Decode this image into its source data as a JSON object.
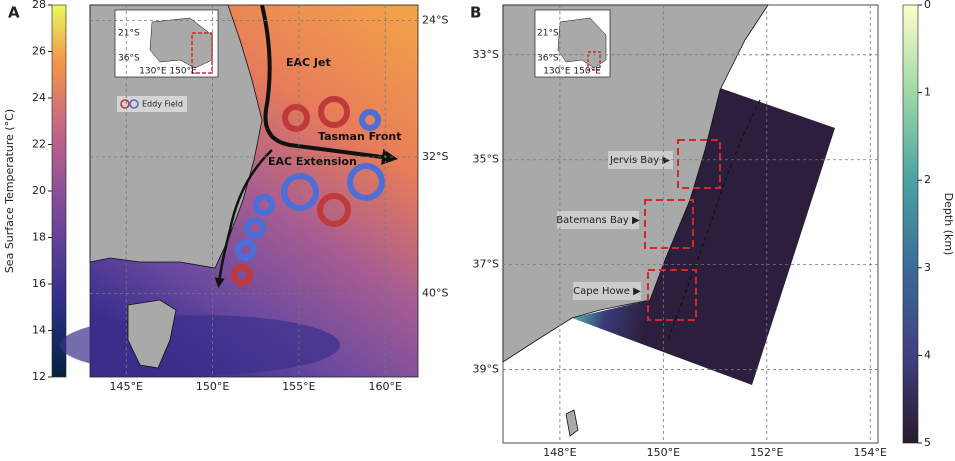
{
  "panel_a": {
    "label": "A",
    "colorbar": {
      "title": "Sea Surface Temperature (°C)",
      "lim": [
        12,
        28
      ],
      "ticks": [
        12,
        14,
        16,
        18,
        20,
        22,
        24,
        26,
        28
      ]
    },
    "map": {
      "xlim": [
        142.9,
        161.9
      ],
      "ylim": [
        -44.9,
        -23.1
      ],
      "xticks": [
        {
          "value": 145,
          "label": "145°E"
        },
        {
          "value": 150,
          "label": "150°E"
        },
        {
          "value": 155,
          "label": "155°E"
        },
        {
          "value": 160,
          "label": "160°E"
        }
      ],
      "yticks": [
        {
          "value": -24,
          "label": "24°S"
        },
        {
          "value": -32,
          "label": "32°S"
        },
        {
          "value": -40,
          "label": "40°S"
        }
      ]
    },
    "inset": {
      "lat_labels": [
        "21°S",
        "36°S"
      ],
      "lon_label": "130°E 150°E"
    },
    "annotations": {
      "jet": "EAC Jet",
      "front": "Tasman Front",
      "extension": "EAC Extension",
      "eddy_legend": "Eddy Field"
    }
  },
  "panel_b": {
    "label": "B",
    "colorbar": {
      "title": "Depth (km)",
      "lim": [
        0,
        5
      ],
      "ticks": [
        0,
        1,
        2,
        3,
        4,
        5
      ],
      "inverted": true
    },
    "map": {
      "xlim": [
        146.9,
        154.15
      ],
      "ylim": [
        -40.4,
        -32.05
      ],
      "xticks": [
        {
          "value": 148,
          "label": "148°E"
        },
        {
          "value": 150,
          "label": "150°E"
        },
        {
          "value": 152,
          "label": "152°E"
        },
        {
          "value": 154,
          "label": "154°E"
        }
      ],
      "yticks": [
        {
          "value": -33,
          "label": "33°S"
        },
        {
          "value": -35,
          "label": "35°S"
        },
        {
          "value": -37,
          "label": "37°S"
        },
        {
          "value": -39,
          "label": "39°S"
        }
      ]
    },
    "inset": {
      "lat_labels": [
        "21°S",
        "36°S"
      ],
      "lon_label": "130°E 150°E"
    },
    "sites": [
      "Jervis Bay ▶",
      "Batemans Bay ▶",
      "Cape Howe ▶"
    ]
  }
}
